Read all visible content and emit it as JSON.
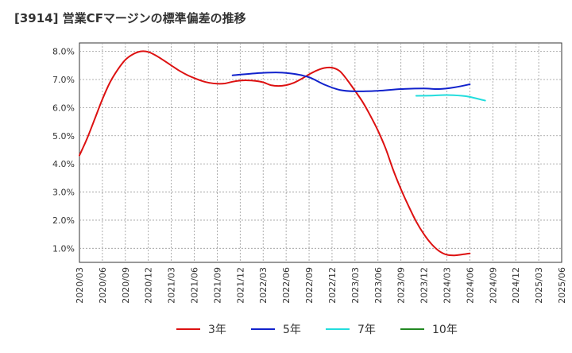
{
  "chart_data": {
    "type": "line",
    "title": "[3914]  営業CFマージンの標準偏差の推移",
    "xlabel": "",
    "ylabel": "",
    "x_ticks": [
      "2020/03",
      "2020/06",
      "2020/09",
      "2020/12",
      "2021/03",
      "2021/06",
      "2021/09",
      "2021/12",
      "2022/03",
      "2022/06",
      "2022/09",
      "2022/12",
      "2023/03",
      "2023/06",
      "2023/09",
      "2023/12",
      "2024/03",
      "2024/06",
      "2024/09",
      "2024/12",
      "2025/03",
      "2025/06"
    ],
    "y_ticks": [
      "1.0%",
      "2.0%",
      "3.0%",
      "4.0%",
      "5.0%",
      "6.0%",
      "7.0%",
      "8.0%"
    ],
    "ylim": [
      0.5,
      8.3
    ],
    "xlim_months": [
      0,
      63
    ],
    "grid": true,
    "legend_position": "bottom",
    "series": [
      {
        "name": "3年",
        "color": "#dd1111",
        "points": [
          [
            0,
            4.3
          ],
          [
            1,
            4.9
          ],
          [
            2,
            5.6
          ],
          [
            3,
            6.3
          ],
          [
            4,
            6.9
          ],
          [
            5,
            7.35
          ],
          [
            6,
            7.7
          ],
          [
            7,
            7.9
          ],
          [
            8,
            8.0
          ],
          [
            9,
            7.98
          ],
          [
            10,
            7.85
          ],
          [
            11,
            7.68
          ],
          [
            12,
            7.5
          ],
          [
            13,
            7.32
          ],
          [
            14,
            7.17
          ],
          [
            15,
            7.05
          ],
          [
            16,
            6.95
          ],
          [
            17,
            6.88
          ],
          [
            18,
            6.85
          ],
          [
            19,
            6.86
          ],
          [
            20,
            6.92
          ],
          [
            21,
            6.96
          ],
          [
            22,
            6.97
          ],
          [
            23,
            6.95
          ],
          [
            24,
            6.9
          ],
          [
            25,
            6.8
          ],
          [
            26,
            6.77
          ],
          [
            27,
            6.8
          ],
          [
            28,
            6.88
          ],
          [
            29,
            7.02
          ],
          [
            30,
            7.18
          ],
          [
            31,
            7.32
          ],
          [
            32,
            7.41
          ],
          [
            33,
            7.42
          ],
          [
            34,
            7.3
          ],
          [
            35,
            6.98
          ],
          [
            36,
            6.6
          ],
          [
            37,
            6.2
          ],
          [
            38,
            5.72
          ],
          [
            39,
            5.18
          ],
          [
            40,
            4.55
          ],
          [
            41,
            3.78
          ],
          [
            42,
            3.1
          ],
          [
            43,
            2.5
          ],
          [
            44,
            1.95
          ],
          [
            45,
            1.5
          ],
          [
            46,
            1.15
          ],
          [
            47,
            0.9
          ],
          [
            48,
            0.77
          ],
          [
            49,
            0.75
          ],
          [
            50,
            0.78
          ],
          [
            51,
            0.82
          ]
        ]
      },
      {
        "name": "5年",
        "color": "#1122cc",
        "points": [
          [
            20,
            7.15
          ],
          [
            23,
            7.22
          ],
          [
            26,
            7.25
          ],
          [
            28,
            7.2
          ],
          [
            30,
            7.08
          ],
          [
            32,
            6.82
          ],
          [
            34,
            6.63
          ],
          [
            36,
            6.58
          ],
          [
            39,
            6.6
          ],
          [
            42,
            6.66
          ],
          [
            45,
            6.68
          ],
          [
            47,
            6.66
          ],
          [
            49,
            6.72
          ],
          [
            51,
            6.83
          ]
        ]
      },
      {
        "name": "7年",
        "color": "#22dddd",
        "points": [
          [
            44,
            6.42
          ],
          [
            46,
            6.43
          ],
          [
            48,
            6.45
          ],
          [
            50,
            6.42
          ],
          [
            51,
            6.38
          ],
          [
            53,
            6.25
          ]
        ]
      },
      {
        "name": "10年",
        "color": "#228822",
        "points": []
      }
    ]
  }
}
